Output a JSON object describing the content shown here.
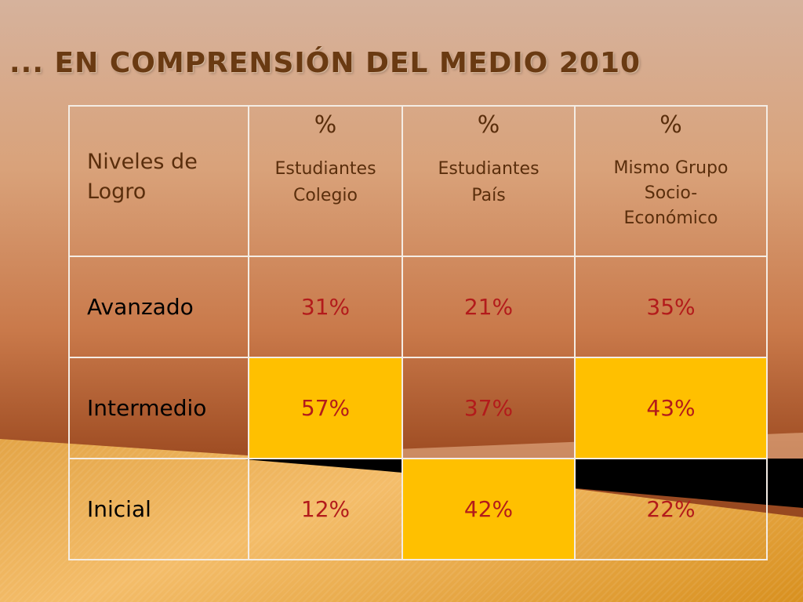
{
  "slide": {
    "title": "... EN COMPRENSIÓN DEL MEDIO 2010"
  },
  "table": {
    "row_header_label": "Niveles de Logro",
    "columns": [
      {
        "symbol": "%",
        "label": "Estudiantes Colegio"
      },
      {
        "symbol": "%",
        "label": "Estudiantes País"
      },
      {
        "symbol": "%",
        "label": "Mismo Grupo Socio-Económico"
      }
    ],
    "rows": [
      {
        "level": "Avanzado",
        "values": [
          "31%",
          "21%",
          "35%"
        ]
      },
      {
        "level": "Intermedio",
        "values": [
          "57%",
          "37%",
          "43%"
        ]
      },
      {
        "level": "Inicial",
        "values": [
          "12%",
          "42%",
          "22%"
        ]
      }
    ],
    "highlight_color": "#ffc000",
    "value_color": "#b31b1b"
  }
}
